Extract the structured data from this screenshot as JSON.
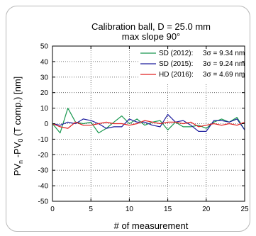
{
  "chart_data": {
    "type": "line",
    "title": "Calibration ball, D = 25.0 mm",
    "subtitle": "max slope 90°",
    "xlabel": "# of measurement",
    "ylabel_parts": [
      {
        "t": "PV",
        "sub": false
      },
      {
        "t": "n",
        "sub": true
      },
      {
        "t": " -PV",
        "sub": false
      },
      {
        "t": "0",
        "sub": true
      },
      {
        "t": " (T comp.) [nm]",
        "sub": false
      }
    ],
    "xlim": [
      0,
      25
    ],
    "ylim": [
      -50,
      50
    ],
    "xticks": [
      "0",
      "5",
      "10",
      "15",
      "20",
      "25"
    ],
    "yticks": [
      "-50",
      "-40",
      "-30",
      "-20",
      "-10",
      "0",
      "10",
      "20",
      "30",
      "40",
      "50"
    ],
    "grid": true,
    "legend_position": "top-right",
    "series": [
      {
        "name": "SD (2012):",
        "stat": "3σ = 9.34 nm",
        "color": "#1a9850",
        "x": [
          0,
          1,
          2,
          3,
          4,
          5,
          6,
          7,
          8,
          9,
          10,
          11,
          12,
          13,
          14,
          15,
          16,
          17,
          18,
          19,
          20,
          21,
          22,
          23,
          24,
          25
        ],
        "y": [
          0,
          -6,
          10,
          1,
          0,
          1,
          -6,
          -3,
          1,
          5,
          0,
          3,
          -1,
          1,
          2,
          -4,
          1,
          -2,
          -2,
          -1,
          -3,
          1,
          3,
          1,
          4,
          -4
        ]
      },
      {
        "name": "SD (2015):",
        "stat": "3σ = 9.24 nm",
        "color": "#1f1f9e",
        "x": [
          0,
          1,
          2,
          3,
          4,
          5,
          6,
          7,
          8,
          9,
          10,
          11,
          12,
          13,
          14,
          15,
          16,
          17,
          18,
          19,
          20,
          21,
          22,
          23,
          24,
          25
        ],
        "y": [
          0,
          -1,
          1,
          0,
          3,
          2,
          0,
          -3,
          -2,
          -2,
          3,
          1,
          1,
          -1,
          -2,
          6,
          1,
          2,
          -1,
          -5,
          -5,
          2,
          2,
          1,
          3,
          -4
        ]
      },
      {
        "name": "HD (2016):",
        "stat": "3σ = 4.69 nm",
        "color": "#e02020",
        "x": [
          0,
          1,
          2,
          3,
          4,
          5,
          6,
          7,
          8,
          9,
          10,
          11,
          12,
          13,
          14,
          15,
          16,
          17,
          18,
          19,
          20,
          21,
          22,
          23,
          24,
          25
        ],
        "y": [
          0,
          -2,
          -3,
          1,
          -1,
          -1,
          0,
          1,
          0,
          0,
          -1,
          0,
          2,
          1,
          0,
          1,
          1,
          0,
          1,
          -2,
          -1,
          0,
          -1,
          0,
          -1,
          1
        ]
      }
    ]
  }
}
